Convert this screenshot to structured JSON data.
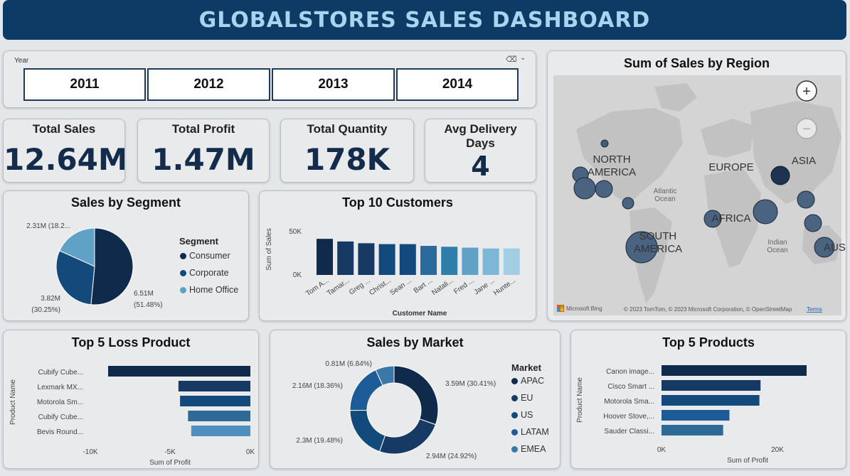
{
  "header": {
    "title": "GLOBALSTORES SALES DASHBOARD"
  },
  "year_slicer": {
    "label": "Year",
    "years": [
      "2011",
      "2012",
      "2013",
      "2014"
    ]
  },
  "kpis": [
    {
      "label": "Total Sales",
      "value": "12.64M"
    },
    {
      "label": "Total Profit",
      "value": "1.47M"
    },
    {
      "label": "Total Quantity",
      "value": "178K"
    },
    {
      "label": "Avg Delivery Days",
      "value": "4"
    }
  ],
  "segment": {
    "title": "Sales by Segment",
    "legend_title": "Segment",
    "items": [
      {
        "name": "Consumer",
        "value": 6.51,
        "label1": "6.51M",
        "label2": "(51.48%)",
        "color": "#0f2a4a"
      },
      {
        "name": "Corporate",
        "value": 3.82,
        "label1": "3.82M",
        "label2": "(30.25%)",
        "color": "#134a7c"
      },
      {
        "name": "Home Office",
        "value": 2.31,
        "label1": "2.31M (18.2...",
        "label2": "",
        "color": "#5fa2c6"
      }
    ]
  },
  "customers": {
    "title": "Top 10 Customers",
    "ylabel": "Sum of Sales",
    "xlabel": "Customer Name",
    "ticks": [
      "50K",
      "0K"
    ],
    "names": [
      "Tom A...",
      "Tamar...",
      "Greg ...",
      "Christ...",
      "Sean ...",
      "Bart ...",
      "Natali...",
      "Fred ...",
      "Jane ...",
      "Hunte..."
    ],
    "values": [
      41,
      38,
      36,
      35,
      35,
      33,
      32,
      31,
      30,
      30
    ],
    "colors": [
      "#0f2a4a",
      "#163a63",
      "#163a63",
      "#134a7c",
      "#134a7c",
      "#2a6a9c",
      "#2f7eaa",
      "#5fa2c6",
      "#7db7d6",
      "#a3cde4"
    ]
  },
  "map": {
    "title": "Sum of Sales by Region",
    "labels": [
      "NORTH AMERICA",
      "EUROPE",
      "ASIA",
      "AFRICA",
      "SOUTH AMERICA",
      "AUST",
      "Atlantic Ocean",
      "Indian Ocean"
    ],
    "attribution": "© 2023 TomTom, © 2023 Microsoft Corporation, © OpenStreetMap",
    "terms": "Terms",
    "bing": "Microsoft Bing",
    "zoom_in": "+",
    "zoom_out": "−"
  },
  "loss_products": {
    "title": "Top 5 Loss Product",
    "ylabel": "Product Name",
    "xlabel": "Sum of Profit",
    "ticks": [
      "-10K",
      "-5K",
      "0K"
    ],
    "names": [
      "Cubify Cube...",
      "Lexmark MX...",
      "Motorola Sm...",
      "Cubify Cube...",
      "Bevis Round..."
    ],
    "values": [
      -8900,
      -4500,
      -4400,
      -3900,
      -3700
    ],
    "colors": [
      "#0f2a4a",
      "#163a63",
      "#134a7c",
      "#2f6a96",
      "#4f8fbd"
    ]
  },
  "market": {
    "title": "Sales by Market",
    "legend_title": "Market",
    "items": [
      {
        "name": "APAC",
        "value": 3.59,
        "label": "3.59M (30.41%)",
        "color": "#0f2a4a"
      },
      {
        "name": "EU",
        "value": 2.94,
        "label": "2.94M (24.92%)",
        "color": "#163a63"
      },
      {
        "name": "US",
        "value": 2.3,
        "label": "2.3M (19.48%)",
        "color": "#134a7c"
      },
      {
        "name": "LATAM",
        "value": 2.16,
        "label": "2.16M (18.36%)",
        "color": "#1d5c96"
      },
      {
        "name": "EMEA",
        "value": 0.81,
        "label": "0.81M (6.84%)",
        "color": "#3a78a8"
      }
    ]
  },
  "top_products": {
    "title": "Top 5 Products",
    "ylabel": "Product Name",
    "xlabel": "Sum of Profit",
    "ticks": [
      "0K",
      "20K"
    ],
    "names": [
      "Canon image...",
      "Cisco Smart ...",
      "Motorola Sma...",
      "Hoover Stove,...",
      "Sauder Classi..."
    ],
    "values": [
      25200,
      17200,
      17000,
      11800,
      10700
    ],
    "colors": [
      "#0f2a4a",
      "#163a63",
      "#134a7c",
      "#1d5c96",
      "#2f6a96"
    ]
  }
}
